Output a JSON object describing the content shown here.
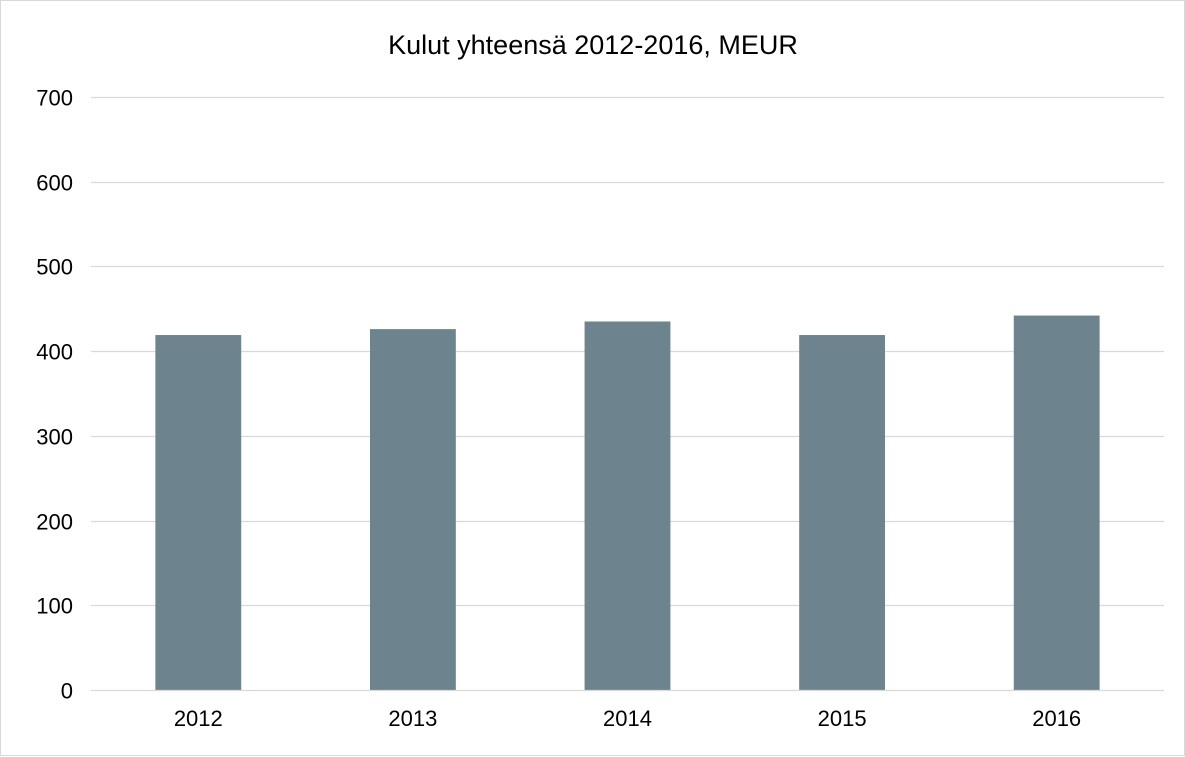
{
  "chart_data": {
    "type": "bar",
    "title": "Kulut yhteensä 2012-2016, MEUR",
    "xlabel": "",
    "ylabel": "",
    "categories": [
      "2012",
      "2013",
      "2014",
      "2015",
      "2016"
    ],
    "values": [
      419,
      426,
      435,
      419,
      442
    ],
    "ylim": [
      0,
      700
    ],
    "yticks": [
      0,
      100,
      200,
      300,
      400,
      500,
      600,
      700
    ],
    "grid": true,
    "legend": "none",
    "colors": {
      "bar": "#6d838e",
      "grid": "#d9d9d9",
      "axis": "#d9d9d9",
      "text": "#000000"
    }
  }
}
